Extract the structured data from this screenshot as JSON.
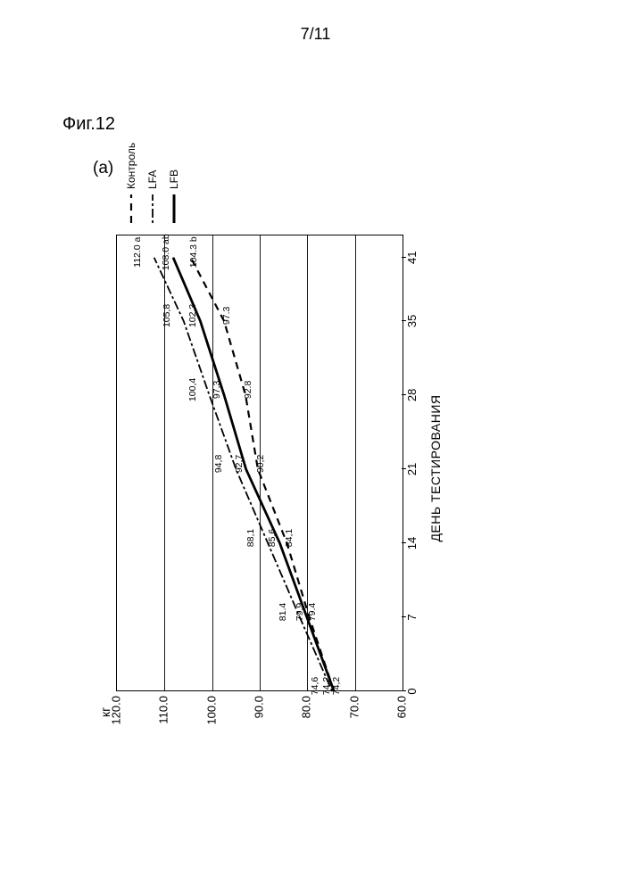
{
  "page_number": "7/11",
  "figure_label": "Фиг.12",
  "subfigure_label": "(a)",
  "chart": {
    "type": "line",
    "x_axis": {
      "title": "ДЕНЬ ТЕСТИРОВАНИЯ",
      "ticks": [
        0,
        7,
        14,
        21,
        28,
        35,
        41
      ],
      "xlim": [
        0,
        43
      ],
      "fontsize": 13
    },
    "y_axis": {
      "title": "кг",
      "ticks": [
        60.0,
        70.0,
        80.0,
        90.0,
        100.0,
        110.0,
        120.0
      ],
      "tick_labels": [
        "60.0",
        "70.0",
        "80.0",
        "90.0",
        "100.0",
        "110.0",
        "120.0"
      ],
      "ylim": [
        60.0,
        120.0
      ],
      "fontsize": 13
    },
    "grid_color": "#000000",
    "background_color": "#ffffff",
    "series": [
      {
        "name": "Контроль",
        "x": [
          0,
          7,
          14,
          21,
          28,
          35,
          41
        ],
        "y": [
          74.2,
          79.4,
          84.1,
          90.2,
          92.8,
          97.3,
          104.3
        ],
        "annotations": [
          "74,2",
          "79.4",
          "84,1",
          "90,2",
          "92.8",
          "97.3",
          "104.3  b"
        ],
        "color": "#000000",
        "dash": "8 6",
        "width": 2.2
      },
      {
        "name": "LFA",
        "x": [
          0,
          7,
          14,
          21,
          28,
          35,
          41
        ],
        "y": [
          74.6,
          81.4,
          88.1,
          94.8,
          100.4,
          105.8,
          112.0
        ],
        "annotations": [
          "74,6",
          "81.4",
          "88,1",
          "94,8",
          "100,4",
          "105,8",
          "112.0  a"
        ],
        "color": "#000000",
        "dash": "3 3 10 3",
        "width": 1.8
      },
      {
        "name": "LFB",
        "x": [
          0,
          7,
          14,
          21,
          28,
          35,
          41
        ],
        "y": [
          74.2,
          79.9,
          85.6,
          92.7,
          97.3,
          102.3,
          108.0
        ],
        "annotations": [
          "74,2",
          "79.9",
          "85,6",
          "92,7",
          "97,3",
          "102,3",
          "108.0  ab"
        ],
        "color": "#000000",
        "dash": "",
        "width": 2.8
      }
    ],
    "legend": {
      "position": "right-outside",
      "items": [
        {
          "label": "Контроль",
          "dash": "8 6",
          "width": 2.2
        },
        {
          "label": "LFA",
          "dash": "3 3 10 3",
          "width": 1.8
        },
        {
          "label": "LFB",
          "dash": "",
          "width": 3
        }
      ],
      "fontsize": 12
    }
  }
}
